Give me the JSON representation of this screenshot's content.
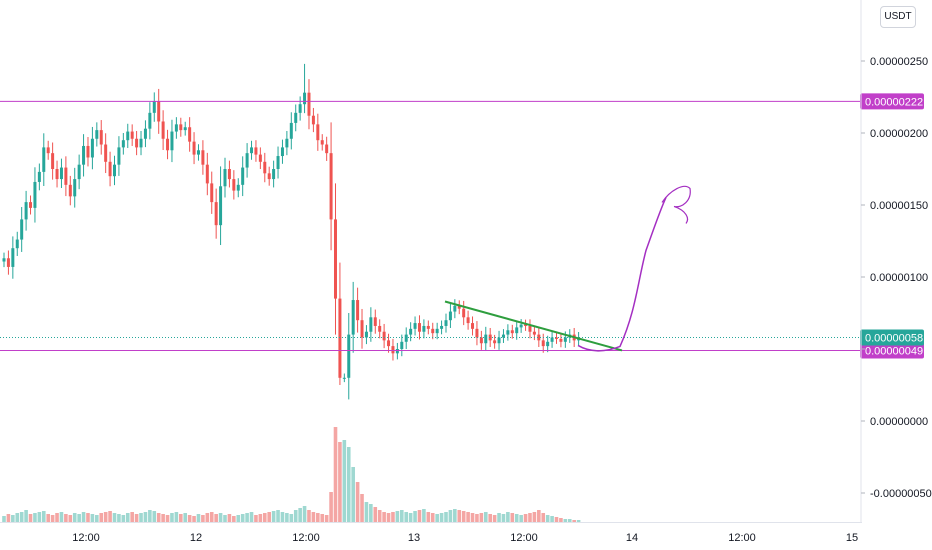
{
  "currency": "USDT",
  "colors": {
    "up": "#26a69a",
    "down": "#ef5350",
    "volume_up": "#9fd8d1",
    "volume_down": "#f4a6a4",
    "level_line": "#c13fc9",
    "trendline": "#2e9e3e",
    "drawing": "#a42fc2",
    "last_price": "#26a69a",
    "text": "#131722"
  },
  "chart_data": {
    "type": "candlestick",
    "y_axis": {
      "min": -6e-07,
      "max": 2.8e-06,
      "ticks": [
        {
          "value": 2.5e-06,
          "label": "0.00000250"
        },
        {
          "value": 2e-06,
          "label": "0.00000200"
        },
        {
          "value": 1.5e-06,
          "label": "0.00000150"
        },
        {
          "value": 1e-06,
          "label": "0.00000100"
        },
        {
          "value": 5e-07,
          "label": ""
        },
        {
          "value": 0.0,
          "label": "0.00000000"
        },
        {
          "value": -5e-07,
          "label": "-0.00000050"
        }
      ]
    },
    "x_axis": {
      "ticks": [
        {
          "x": 86,
          "label": "12:00"
        },
        {
          "x": 196,
          "label": "12"
        },
        {
          "x": 306,
          "label": "12:00"
        },
        {
          "x": 414,
          "label": "13"
        },
        {
          "x": 524,
          "label": "12:00"
        },
        {
          "x": 632,
          "label": "14"
        },
        {
          "x": 742,
          "label": "12:00"
        },
        {
          "x": 852,
          "label": "15"
        }
      ]
    },
    "price_levels": [
      {
        "value": 2.22e-06,
        "label": "0.00000222",
        "style": "level"
      },
      {
        "value": 4.9e-07,
        "label": "0.00000049",
        "style": "level"
      },
      {
        "value": 5.8e-07,
        "label": "0.00000058",
        "style": "last"
      }
    ],
    "closes": [
      1.13e-06,
      1.07e-06,
      1.2e-06,
      1.26e-06,
      1.4e-06,
      1.52e-06,
      1.48e-06,
      1.66e-06,
      1.73e-06,
      1.9e-06,
      1.86e-06,
      1.75e-06,
      1.68e-06,
      1.76e-06,
      1.64e-06,
      1.56e-06,
      1.68e-06,
      1.78e-06,
      1.91e-06,
      1.83e-06,
      1.96e-06,
      2.02e-06,
      1.92e-06,
      1.8e-06,
      1.7e-06,
      1.78e-06,
      1.9e-06,
      1.95e-06,
      2.01e-06,
      1.96e-06,
      1.9e-06,
      1.96e-06,
      2.03e-06,
      2.14e-06,
      2.22e-06,
      2.08e-06,
      1.96e-06,
      1.88e-06,
      2.01e-06,
      2.06e-06,
      2.02e-06,
      2.04e-06,
      1.94e-06,
      1.85e-06,
      1.88e-06,
      1.78e-06,
      1.65e-06,
      1.52e-06,
      1.36e-06,
      1.63e-06,
      1.75e-06,
      1.68e-06,
      1.6e-06,
      1.64e-06,
      1.76e-06,
      1.86e-06,
      1.9e-06,
      1.85e-06,
      1.8e-06,
      1.72e-06,
      1.68e-06,
      1.75e-06,
      1.84e-06,
      1.9e-06,
      1.96e-06,
      2.07e-06,
      2.14e-06,
      2.2e-06,
      2.28e-06,
      2.12e-06,
      2.06e-06,
      1.95e-06,
      1.92e-06,
      1.86e-06,
      1.4e-06,
      8.5e-07,
      3e-07,
      3e-07,
      6e-07,
      8.4e-07,
      7e-07,
      5.8e-07,
      6.2e-07,
      7.2e-07,
      6.6e-07,
      6.2e-07,
      5.6e-07,
      5.2e-07,
      4.7e-07,
      5e-07,
      5.5e-07,
      6e-07,
      6.4e-07,
      6.8e-07,
      6.2e-07,
      6.6e-07,
      6.4e-07,
      6.1e-07,
      6.4e-07,
      6.6e-07,
      7e-07,
      7.6e-07,
      8e-07,
      7.8e-07,
      7.2e-07,
      6.8e-07,
      6.4e-07,
      5.8e-07,
      5.4e-07,
      6e-07,
      5.6e-07,
      5.4e-07,
      5.8e-07,
      6e-07,
      6.3e-07,
      6.1e-07,
      6.5e-07,
      6.7e-07,
      6.6e-07,
      6.2e-07,
      6e-07,
      5.6e-07,
      5.2e-07,
      5.5e-07,
      5.8e-07,
      5.7e-07,
      5.5e-07,
      5.8e-07,
      6e-07,
      5.6e-07,
      5.8e-07
    ],
    "volume": {
      "base": [
        6,
        8,
        7,
        9,
        10,
        12,
        8,
        9,
        10,
        11,
        8,
        7,
        9,
        10,
        8,
        7,
        9,
        8,
        10,
        9,
        8,
        7,
        9,
        10,
        11,
        9,
        8,
        7,
        9,
        10,
        8,
        9,
        10,
        12,
        11,
        9,
        8,
        7,
        9,
        10,
        8,
        9,
        7,
        6,
        8,
        7,
        9,
        10,
        8,
        9,
        7,
        8,
        6,
        7,
        8,
        9,
        10,
        7,
        8,
        9,
        10,
        11,
        12,
        10,
        9,
        8,
        12,
        14,
        16,
        12,
        10,
        9,
        8,
        7,
        30,
        95,
        80,
        82,
        75,
        55,
        40,
        28,
        20,
        18,
        15,
        12,
        10,
        9,
        10,
        11,
        12,
        10,
        9,
        11,
        12,
        13,
        10,
        9,
        8,
        9,
        10,
        12,
        13,
        12,
        11,
        10,
        9,
        8,
        9,
        10,
        8,
        7,
        9,
        8,
        10,
        9,
        8,
        7,
        8,
        9,
        10,
        12,
        9,
        7,
        6,
        5,
        4,
        3,
        3,
        2,
        2
      ]
    },
    "annotations": {
      "trendline": {
        "from": {
          "x": 445,
          "value": 8.3e-07
        },
        "to": {
          "x": 622,
          "value": 4.9e-07
        }
      },
      "projection": "curve rising from 0.00000049 to about 0.00000160"
    }
  }
}
